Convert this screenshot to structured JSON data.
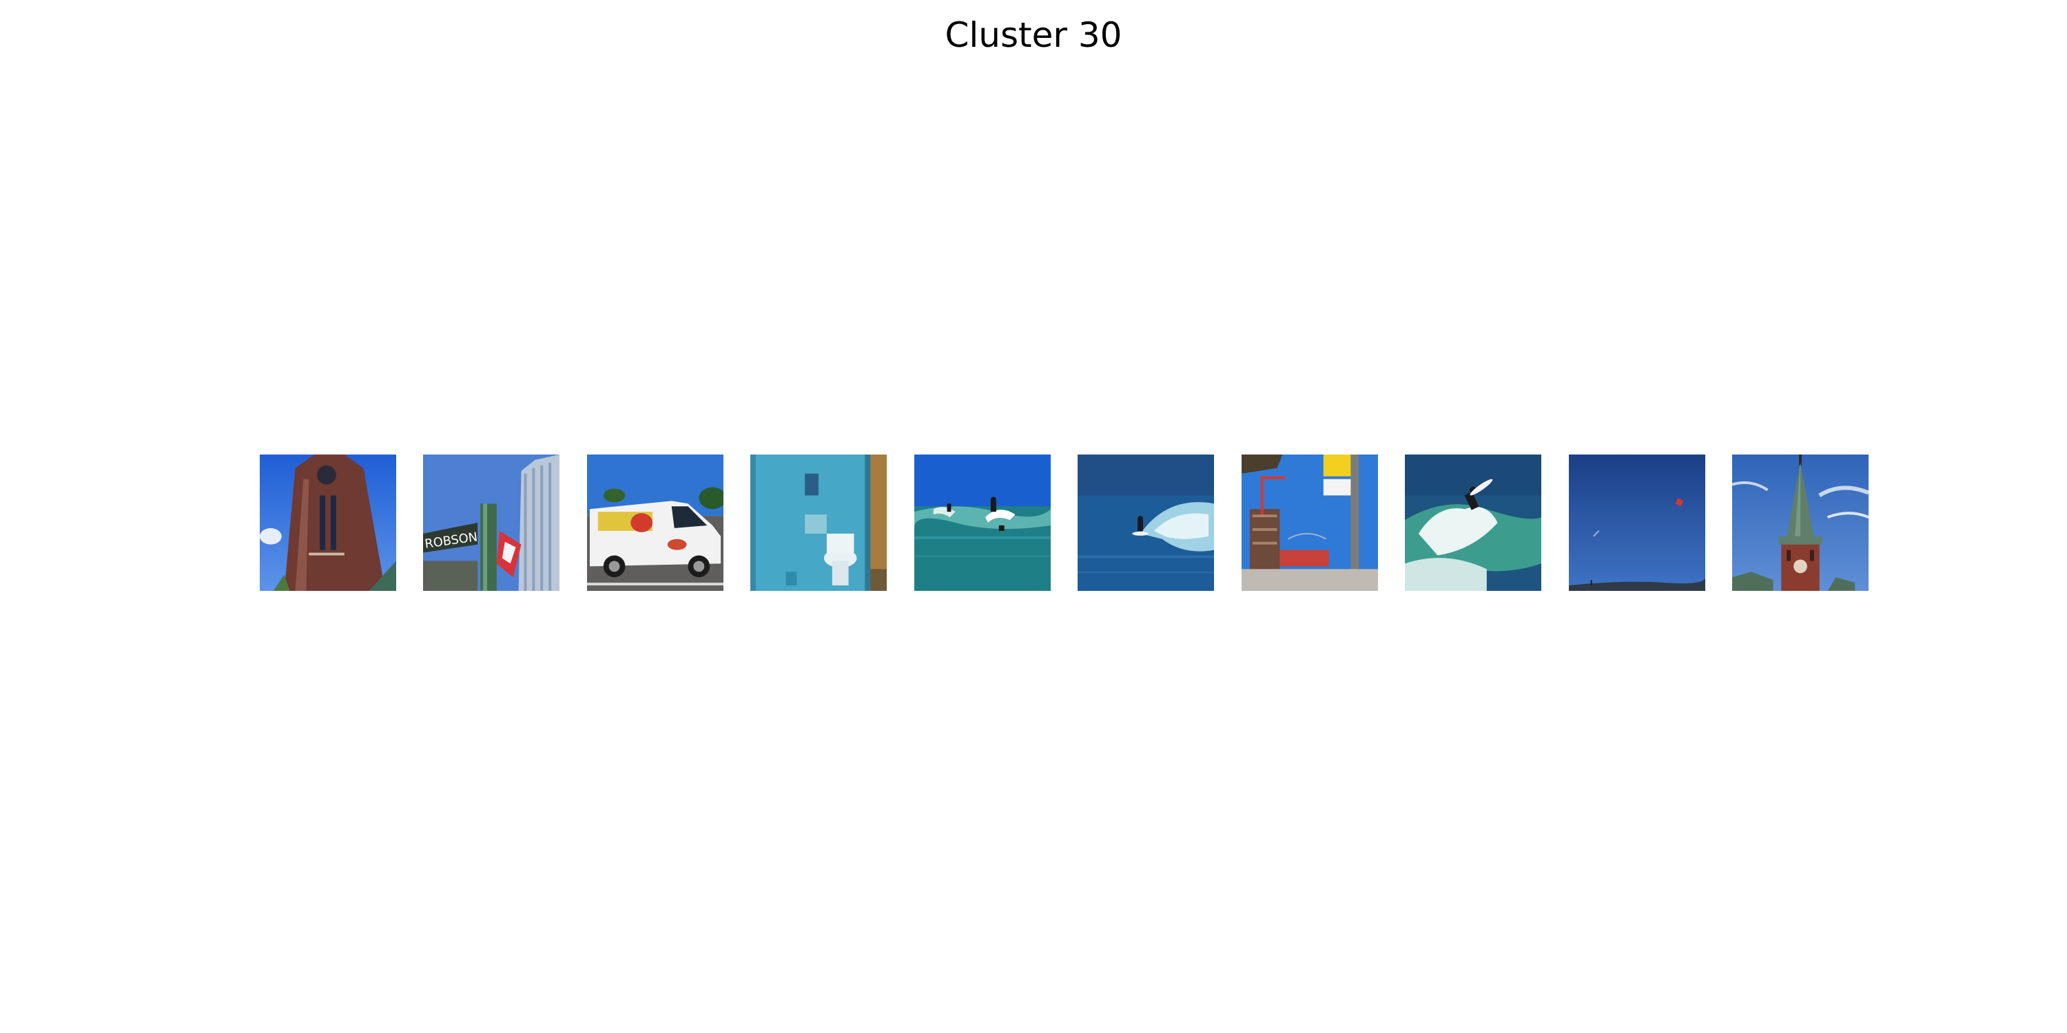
{
  "figure": {
    "title": "Cluster 30"
  },
  "thumbnails": [
    {
      "subject": "clock-tower-photo"
    },
    {
      "subject": "street-sign-robson-photo",
      "sign_text": "ROBSON"
    },
    {
      "subject": "white-van-photo"
    },
    {
      "subject": "blue-bathroom-toilet-photo"
    },
    {
      "subject": "surfers-on-wave-photo"
    },
    {
      "subject": "surfer-on-wave-photo"
    },
    {
      "subject": "construction-site-street-sign-photo"
    },
    {
      "subject": "surfer-splash-photo"
    },
    {
      "subject": "kite-in-sky-photo"
    },
    {
      "subject": "church-steeple-photo"
    }
  ]
}
